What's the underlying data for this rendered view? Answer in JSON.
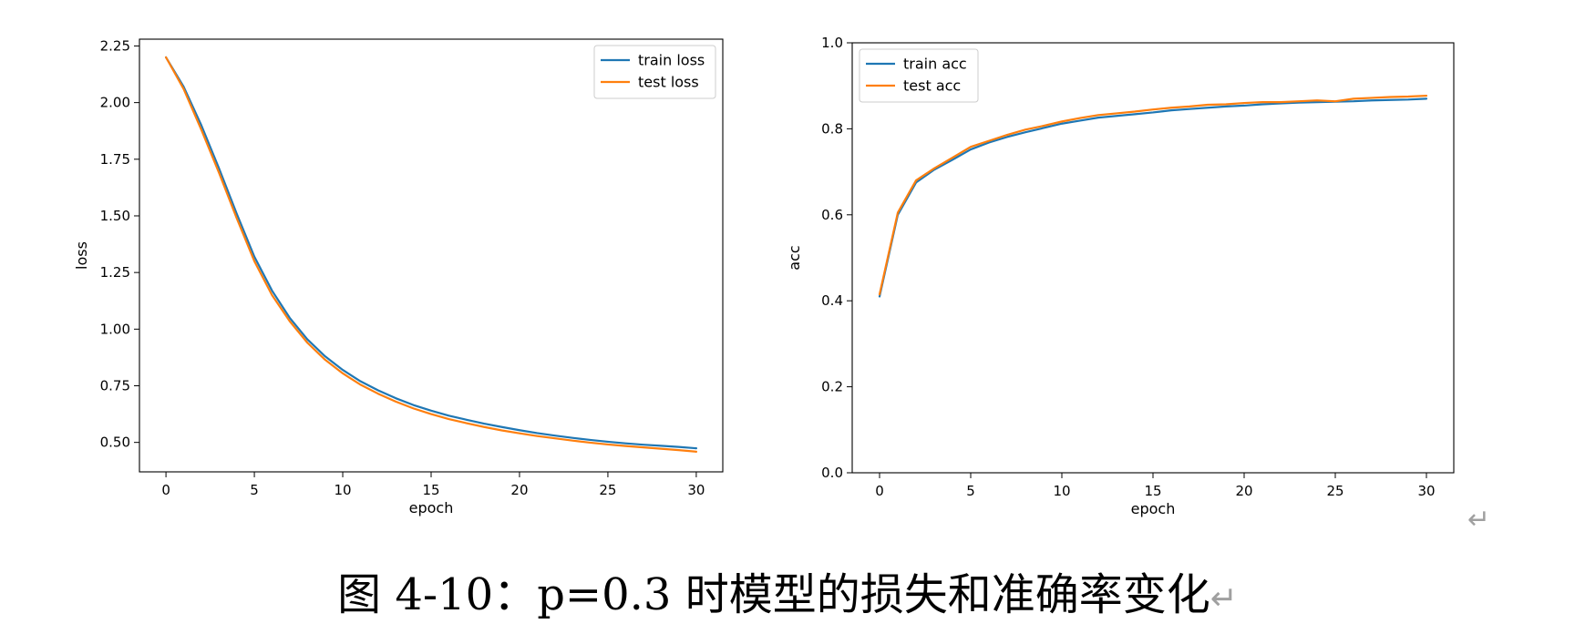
{
  "caption": "图 4-10：p=0.3 时模型的损失和准确率变化",
  "paragraph_mark": "↵",
  "colors": {
    "train": "#1f77b4",
    "test": "#ff7f0e"
  },
  "chart_data": [
    {
      "type": "line",
      "title": "",
      "xlabel": "epoch",
      "ylabel": "loss",
      "xlim": [
        -1.5,
        31.5
      ],
      "ylim": [
        0.37,
        2.28
      ],
      "xticks": [
        0,
        5,
        10,
        15,
        20,
        25,
        30
      ],
      "yticks": [
        0.5,
        0.75,
        1.0,
        1.25,
        1.5,
        1.75,
        2.0,
        2.25
      ],
      "ytick_decimals": 2,
      "grid": false,
      "legend": "upper right",
      "x": [
        0,
        1,
        2,
        3,
        4,
        5,
        6,
        7,
        8,
        9,
        10,
        11,
        12,
        13,
        14,
        15,
        16,
        17,
        18,
        19,
        20,
        21,
        22,
        23,
        24,
        25,
        26,
        27,
        28,
        29,
        30
      ],
      "series": [
        {
          "name": "train loss",
          "color": "#1f77b4",
          "values": [
            2.2,
            2.07,
            1.9,
            1.71,
            1.51,
            1.32,
            1.17,
            1.05,
            0.955,
            0.88,
            0.82,
            0.77,
            0.73,
            0.695,
            0.665,
            0.64,
            0.618,
            0.6,
            0.583,
            0.568,
            0.554,
            0.541,
            0.53,
            0.52,
            0.511,
            0.503,
            0.496,
            0.49,
            0.485,
            0.48,
            0.474
          ]
        },
        {
          "name": "test loss",
          "color": "#ff7f0e",
          "values": [
            2.2,
            2.06,
            1.88,
            1.69,
            1.49,
            1.3,
            1.15,
            1.035,
            0.94,
            0.865,
            0.805,
            0.755,
            0.715,
            0.68,
            0.65,
            0.625,
            0.603,
            0.585,
            0.568,
            0.553,
            0.54,
            0.528,
            0.518,
            0.508,
            0.499,
            0.491,
            0.484,
            0.478,
            0.472,
            0.466,
            0.459
          ]
        }
      ]
    },
    {
      "type": "line",
      "title": "",
      "xlabel": "epoch",
      "ylabel": "acc",
      "xlim": [
        -1.5,
        31.5
      ],
      "ylim": [
        0.0,
        1.0
      ],
      "xticks": [
        0,
        5,
        10,
        15,
        20,
        25,
        30
      ],
      "yticks": [
        0.0,
        0.2,
        0.4,
        0.6,
        0.8,
        1.0
      ],
      "ytick_decimals": 1,
      "grid": false,
      "legend": "upper left",
      "x": [
        0,
        1,
        2,
        3,
        4,
        5,
        6,
        7,
        8,
        9,
        10,
        11,
        12,
        13,
        14,
        15,
        16,
        17,
        18,
        19,
        20,
        21,
        22,
        23,
        24,
        25,
        26,
        27,
        28,
        29,
        30
      ],
      "series": [
        {
          "name": "train acc",
          "color": "#1f77b4",
          "values": [
            0.41,
            0.6,
            0.675,
            0.705,
            0.728,
            0.752,
            0.768,
            0.781,
            0.792,
            0.802,
            0.812,
            0.819,
            0.826,
            0.83,
            0.834,
            0.838,
            0.843,
            0.846,
            0.849,
            0.852,
            0.854,
            0.857,
            0.859,
            0.861,
            0.862,
            0.863,
            0.864,
            0.866,
            0.867,
            0.868,
            0.87
          ]
        },
        {
          "name": "test acc",
          "color": "#ff7f0e",
          "values": [
            0.415,
            0.605,
            0.68,
            0.708,
            0.733,
            0.758,
            0.772,
            0.786,
            0.798,
            0.807,
            0.817,
            0.825,
            0.832,
            0.836,
            0.84,
            0.845,
            0.849,
            0.852,
            0.856,
            0.857,
            0.86,
            0.862,
            0.862,
            0.864,
            0.866,
            0.864,
            0.87,
            0.872,
            0.874,
            0.875,
            0.877
          ]
        }
      ]
    }
  ]
}
